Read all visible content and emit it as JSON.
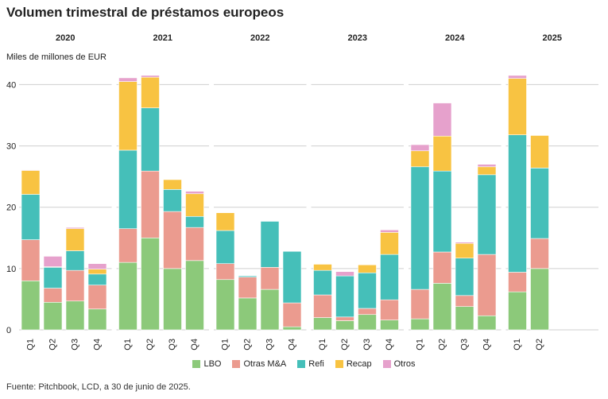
{
  "title": "Volumen trimestral de préstamos europeos",
  "unit_label": "Miles de millones de EUR",
  "source": "Fuente: Pitchbook, LCD, a 30 de junio de 2025.",
  "colors": {
    "LBO": "#8cc97a",
    "Otras M&A": "#eb9b8f",
    "Refi": "#45bfb9",
    "Recap": "#f8c342",
    "Otros": "#e6a1cc"
  },
  "chart_data": {
    "type": "bar",
    "stacked": true,
    "ylim": [
      0,
      42
    ],
    "yticks": [
      0,
      10,
      20,
      30,
      40
    ],
    "grid": true,
    "legend_position": "bottom",
    "ylabel": "Miles de millones de EUR",
    "series_names": [
      "LBO",
      "Otras M&A",
      "Refi",
      "Recap",
      "Otros"
    ],
    "years": [
      {
        "year": "2020",
        "quarters": [
          {
            "q": "Q1",
            "values": [
              8.0,
              6.7,
              7.4,
              3.9,
              0.1
            ]
          },
          {
            "q": "Q2",
            "values": [
              4.5,
              2.3,
              3.4,
              0.1,
              1.7
            ]
          },
          {
            "q": "Q3",
            "values": [
              4.7,
              5.0,
              3.2,
              3.6,
              0.2
            ]
          },
          {
            "q": "Q4",
            "values": [
              3.4,
              3.9,
              1.8,
              0.8,
              0.9
            ]
          }
        ]
      },
      {
        "year": "2021",
        "quarters": [
          {
            "q": "Q1",
            "values": [
              11.0,
              5.5,
              12.8,
              11.2,
              0.6
            ]
          },
          {
            "q": "Q2",
            "values": [
              15.0,
              10.9,
              10.3,
              5.0,
              0.3
            ]
          },
          {
            "q": "Q3",
            "values": [
              10.0,
              9.3,
              3.6,
              1.6,
              0.0
            ]
          },
          {
            "q": "Q4",
            "values": [
              11.3,
              5.4,
              1.8,
              3.7,
              0.4
            ]
          }
        ]
      },
      {
        "year": "2022",
        "quarters": [
          {
            "q": "Q1",
            "values": [
              8.2,
              2.6,
              5.4,
              2.9,
              0.0
            ]
          },
          {
            "q": "Q2",
            "values": [
              5.2,
              3.4,
              0.2,
              0.0,
              0.0
            ]
          },
          {
            "q": "Q3",
            "values": [
              6.6,
              3.6,
              7.5,
              0.0,
              0.0
            ]
          },
          {
            "q": "Q4",
            "values": [
              0.5,
              3.9,
              8.4,
              0.0,
              0.0
            ]
          }
        ]
      },
      {
        "year": "2023",
        "quarters": [
          {
            "q": "Q1",
            "values": [
              2.0,
              3.7,
              4.0,
              1.0,
              0.0
            ]
          },
          {
            "q": "Q2",
            "values": [
              1.5,
              0.6,
              6.7,
              0.0,
              0.7
            ]
          },
          {
            "q": "Q3",
            "values": [
              2.5,
              1.0,
              5.8,
              1.3,
              0.0
            ]
          },
          {
            "q": "Q4",
            "values": [
              1.6,
              3.3,
              7.4,
              3.6,
              0.4
            ]
          }
        ]
      },
      {
        "year": "2024",
        "quarters": [
          {
            "q": "Q1",
            "values": [
              1.8,
              4.8,
              20.0,
              2.6,
              1.0
            ]
          },
          {
            "q": "Q2",
            "values": [
              7.6,
              5.1,
              13.2,
              5.7,
              5.4
            ]
          },
          {
            "q": "Q3",
            "values": [
              3.8,
              1.8,
              6.1,
              2.4,
              0.2
            ]
          },
          {
            "q": "Q4",
            "values": [
              2.3,
              10.0,
              13.0,
              1.3,
              0.4
            ]
          }
        ]
      },
      {
        "year": "2025",
        "quarters": [
          {
            "q": "Q1",
            "values": [
              6.2,
              3.2,
              22.4,
              9.2,
              0.5
            ]
          },
          {
            "q": "Q2",
            "values": [
              10.0,
              4.9,
              11.5,
              5.3,
              0.0
            ]
          }
        ]
      }
    ]
  }
}
